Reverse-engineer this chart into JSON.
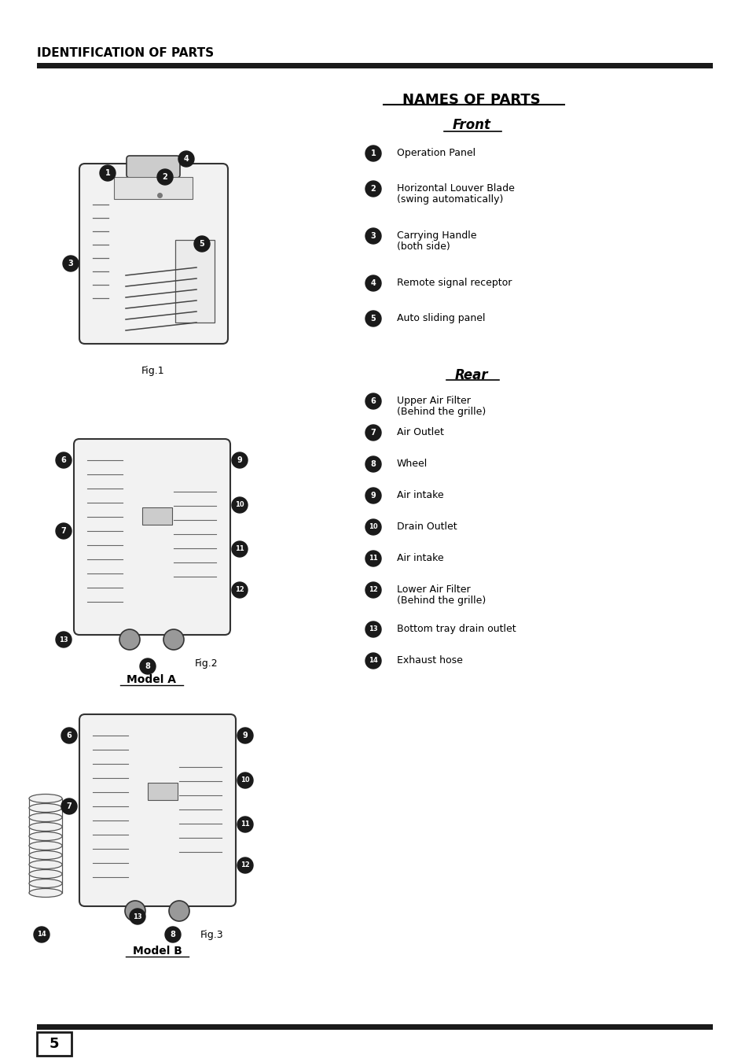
{
  "title": "IDENTIFICATION OF PARTS",
  "section_title": "NAMES OF PARTS",
  "front_label": "Front",
  "rear_label": "Rear",
  "page_number": "5",
  "fig1_label": "Fig.1",
  "fig2_label": "Fig.2",
  "fig3_label": "Fig.3",
  "model_a_label": "Model A",
  "model_b_label": "Model B",
  "front_parts": [
    {
      "num": "1",
      "text": "Operation Panel"
    },
    {
      "num": "2",
      "text": "Horizontal Louver Blade\n(swing automatically)"
    },
    {
      "num": "3",
      "text": "Carrying Handle\n(both side)"
    },
    {
      "num": "4",
      "text": "Remote signal receptor"
    },
    {
      "num": "5",
      "text": "Auto sliding panel"
    }
  ],
  "rear_parts": [
    {
      "num": "6",
      "text": "Upper Air Filter\n(Behind the grille)"
    },
    {
      "num": "7",
      "text": "Air Outlet"
    },
    {
      "num": "8",
      "text": "Wheel"
    },
    {
      "num": "9",
      "text": "Air intake"
    },
    {
      "num": "10",
      "text": "Drain Outlet"
    },
    {
      "num": "11",
      "text": "Air intake"
    },
    {
      "num": "12",
      "text": "Lower Air Filter\n(Behind the grille)"
    },
    {
      "num": "13",
      "text": "Bottom tray drain outlet"
    },
    {
      "num": "14",
      "text": "Exhaust hose"
    }
  ],
  "bg_color": "#ffffff",
  "text_color": "#000000",
  "title_bar_color": "#1a1a1a",
  "footer_bar_color": "#1a1a1a",
  "circle_fill": "#1a1a1a",
  "circle_text": "#ffffff",
  "front_y_positions": [
    195,
    240,
    300,
    360,
    405
  ],
  "rear_y_positions": [
    510,
    550,
    590,
    630,
    670,
    710,
    750,
    800,
    840
  ]
}
